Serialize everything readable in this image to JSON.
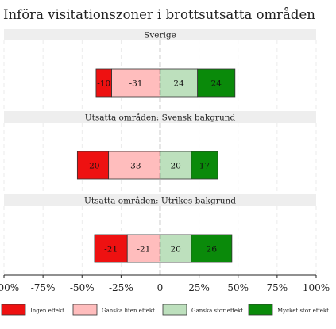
{
  "chart_data": {
    "type": "bar",
    "title": "Införa visitationszoner i brottsutsatta områden",
    "xlim": [
      -100,
      100
    ],
    "xticks": [
      "-100%",
      "-75%",
      "-50%",
      "-25%",
      "0",
      "25%",
      "50%",
      "75%",
      "100%"
    ],
    "xtick_values": [
      -100,
      -75,
      -50,
      -25,
      0,
      25,
      50,
      75,
      100
    ],
    "grid": true,
    "legend_position": "bottom",
    "series": [
      {
        "name": "Ingen effekt",
        "color": "#ee1111"
      },
      {
        "name": "Ganska liten effekt",
        "color": "#ffbdbd"
      },
      {
        "name": "Ganska stor effekt",
        "color": "#bde0bd"
      },
      {
        "name": "Mycket stor effekt",
        "color": "#0a8a0a"
      }
    ],
    "panels": [
      {
        "title": "Sverige",
        "values": [
          -10,
          -31,
          24,
          24
        ]
      },
      {
        "title": "Utsatta områden: Svensk bakgrund",
        "values": [
          -20,
          -33,
          20,
          17
        ]
      },
      {
        "title": "Utsatta områden: Utrikes bakgrund",
        "values": [
          -21,
          -21,
          20,
          26
        ]
      }
    ]
  }
}
